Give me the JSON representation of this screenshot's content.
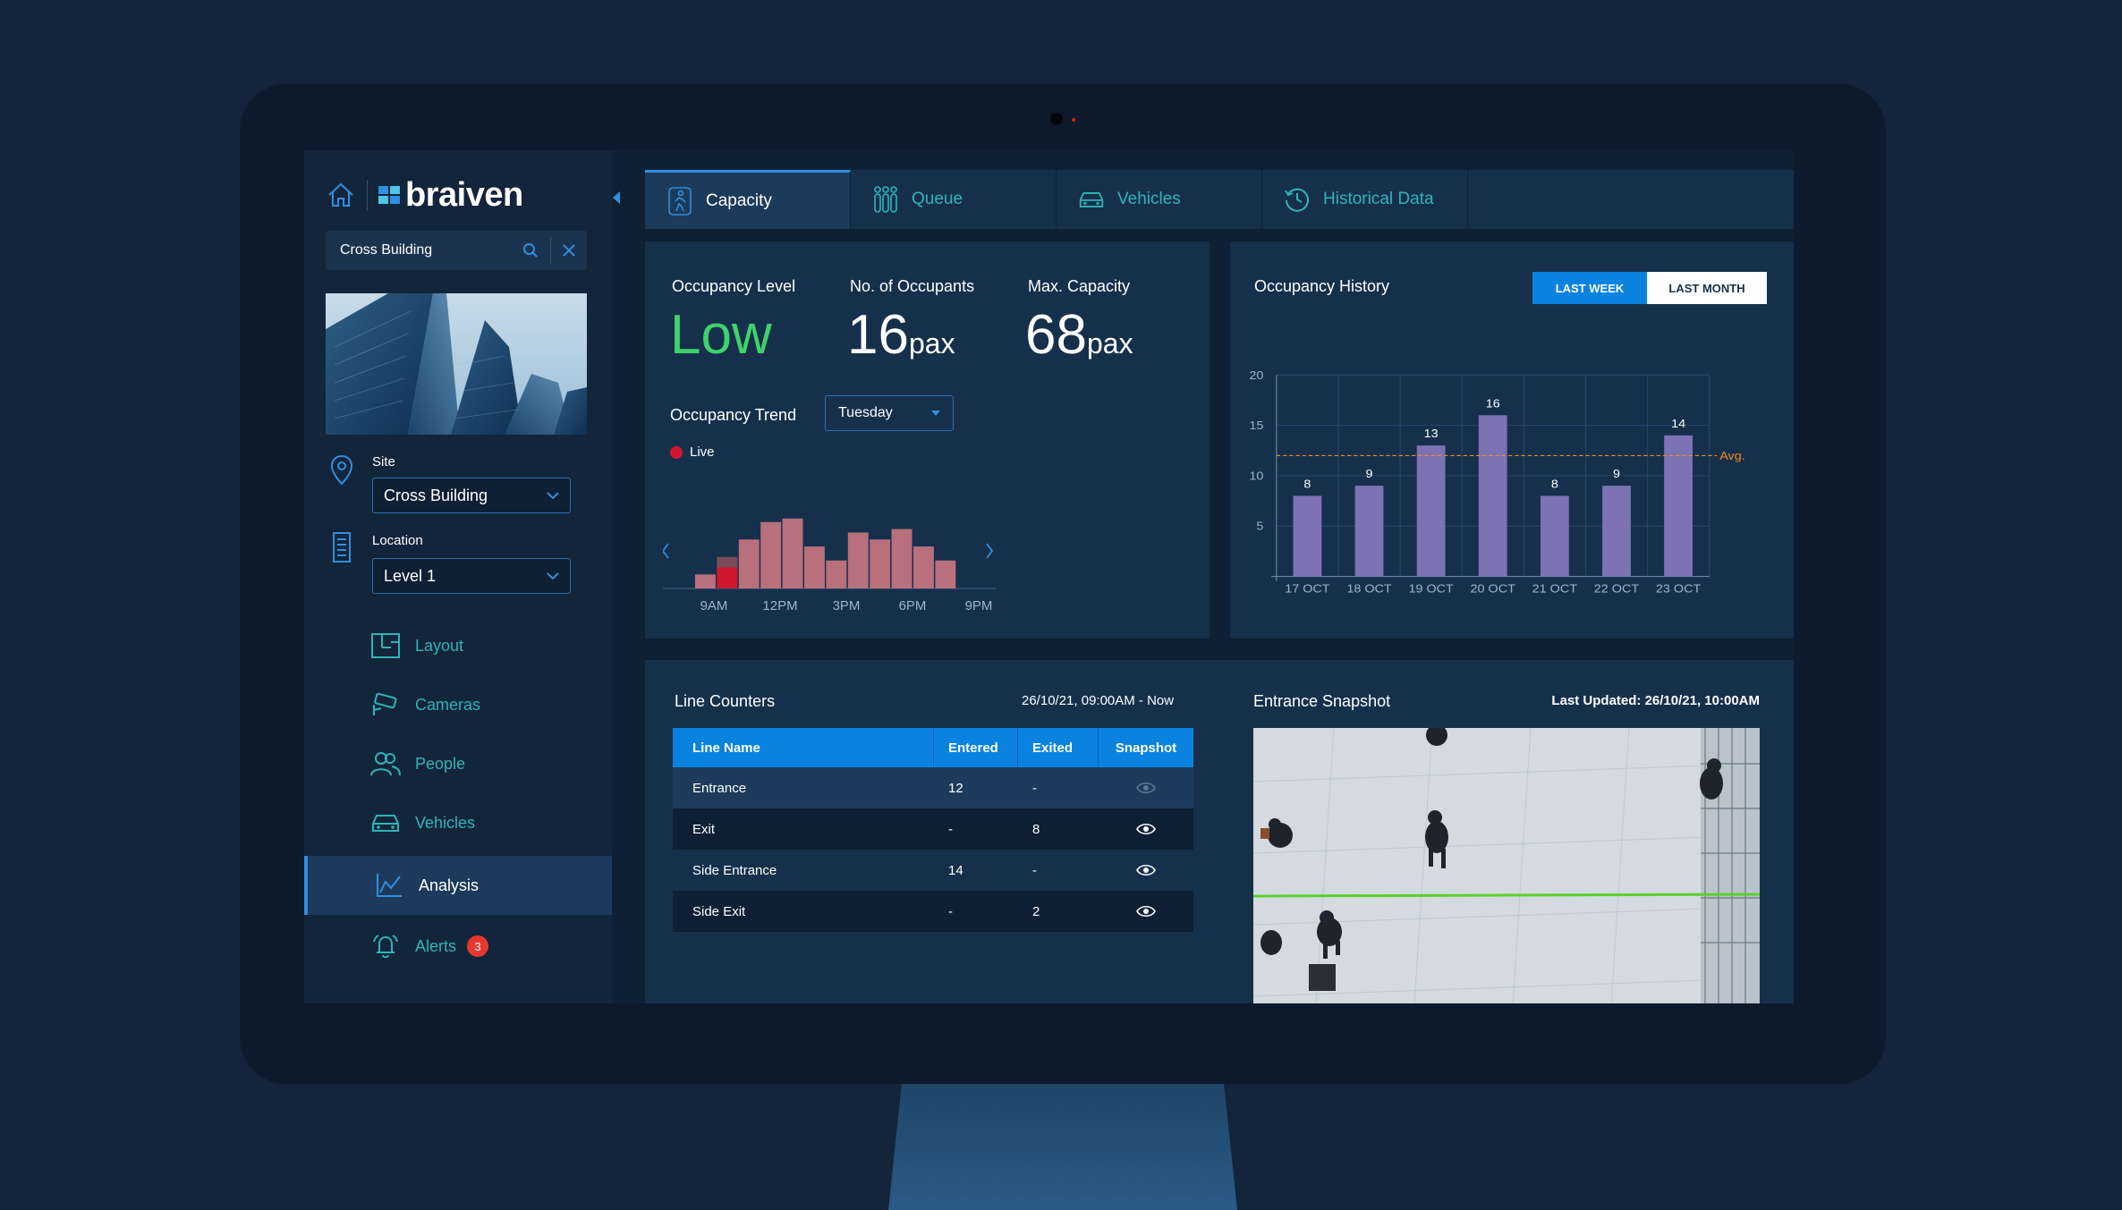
{
  "brand": {
    "name": "braiven"
  },
  "search": {
    "value": "Cross Building"
  },
  "site": {
    "label": "Site",
    "value": "Cross Building"
  },
  "location": {
    "label": "Location",
    "value": "Level 1"
  },
  "nav": [
    {
      "label": "Layout",
      "icon": "layout-icon"
    },
    {
      "label": "Cameras",
      "icon": "camera-icon"
    },
    {
      "label": "People",
      "icon": "people-icon"
    },
    {
      "label": "Vehicles",
      "icon": "car-icon"
    },
    {
      "label": "Analysis",
      "icon": "analysis-chart-icon",
      "active": true
    },
    {
      "label": "Alerts",
      "icon": "bell-icon",
      "badge": "3"
    }
  ],
  "tabs": [
    {
      "label": "Capacity",
      "icon": "person-walking-icon",
      "active": true
    },
    {
      "label": "Queue",
      "icon": "queue-icon"
    },
    {
      "label": "Vehicles",
      "icon": "car-icon"
    },
    {
      "label": "Historical Data",
      "icon": "history-icon"
    }
  ],
  "stats": {
    "occupancy_level_label": "Occupancy Level",
    "occupancy_level_value": "Low",
    "occupants_label": "No. of Occupants",
    "occupants_value": "16",
    "occupants_unit": "pax",
    "capacity_label": "Max. Capacity",
    "capacity_value": "68",
    "capacity_unit": "pax"
  },
  "trend": {
    "title": "Occupancy Trend",
    "day": "Tuesday",
    "live_label": "Live"
  },
  "history": {
    "title": "Occupancy History",
    "btn_week": "LAST WEEK",
    "btn_month": "LAST MONTH",
    "avg_label": "Avg."
  },
  "line_counters": {
    "title": "Line Counters",
    "range": "26/10/21, 09:00AM - Now",
    "headers": [
      "Line Name",
      "Entered",
      "Exited",
      "Snapshot"
    ],
    "rows": [
      {
        "name": "Entrance",
        "entered": "12",
        "exited": "-"
      },
      {
        "name": "Exit",
        "entered": "-",
        "exited": "8"
      },
      {
        "name": "Side Entrance",
        "entered": "14",
        "exited": "-"
      },
      {
        "name": "Side Exit",
        "entered": "-",
        "exited": "2"
      }
    ]
  },
  "snapshot": {
    "title": "Entrance Snapshot",
    "updated": "Last Updated: 26/10/21, 10:00AM"
  },
  "colors": {
    "accent": "#0a83e0",
    "teal": "#2fb4b8",
    "low": "#3fd26a",
    "trend_bar": "#b7707c",
    "live_bar": "#d0172f",
    "history_bar": "#7d72b4",
    "avg_line": "#f08a18"
  },
  "chart_data": [
    {
      "type": "bar",
      "name": "occupancy-trend",
      "x_tick_labels": [
        "9AM",
        "12PM",
        "3PM",
        "6PM",
        "9PM"
      ],
      "values": [
        4,
        9,
        14,
        19,
        20,
        12,
        8,
        16,
        14,
        17,
        12,
        8
      ],
      "live_index": 1,
      "live_value": 6,
      "ylim": [
        0,
        22
      ]
    },
    {
      "type": "bar",
      "name": "occupancy-history",
      "categories": [
        "17 OCT",
        "18 OCT",
        "19 OCT",
        "20 OCT",
        "21 OCT",
        "22 OCT",
        "23 OCT"
      ],
      "values": [
        8,
        9,
        13,
        16,
        8,
        9,
        14
      ],
      "avg": 12,
      "ylim": [
        0,
        20
      ],
      "yticks": [
        5,
        10,
        15,
        20
      ],
      "grid": true
    }
  ]
}
